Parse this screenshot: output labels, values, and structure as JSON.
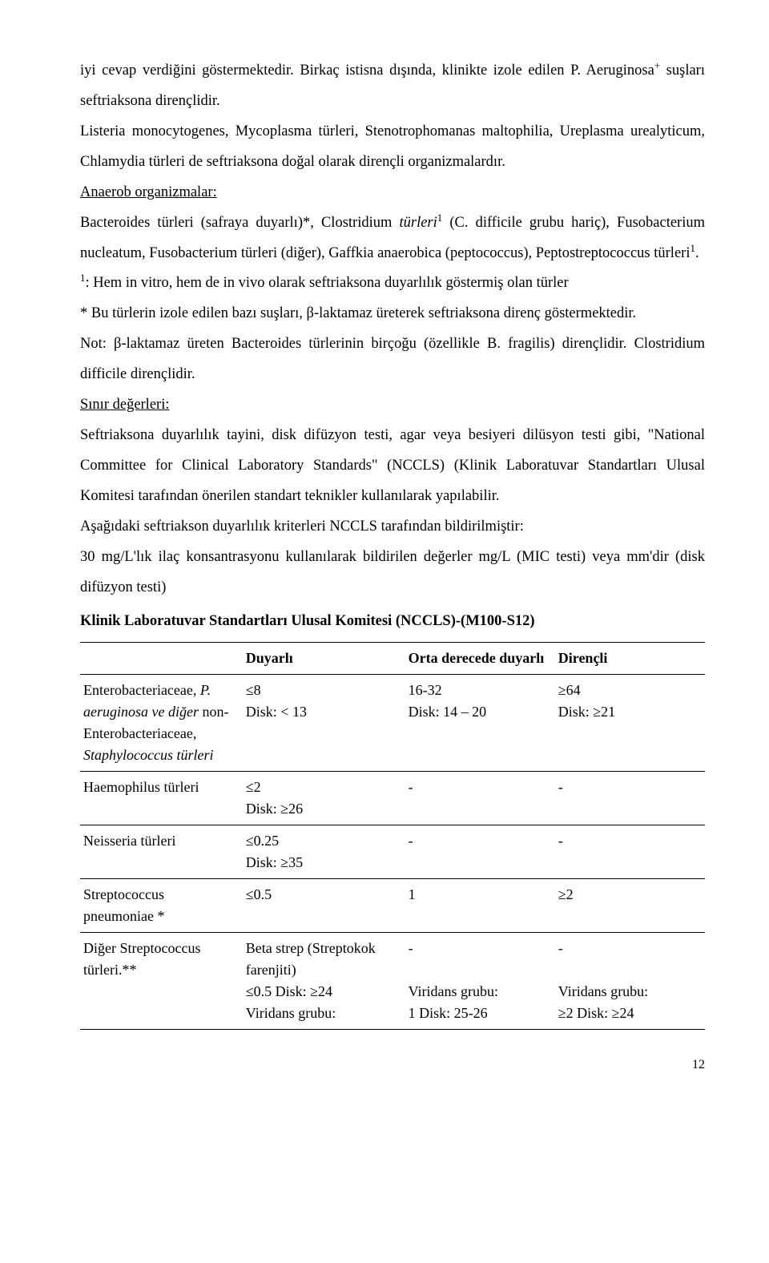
{
  "paragraphs": {
    "p1_a": "iyi cevap verdiğini göstermektedir. Birkaç istisna dışında, klinikte izole edilen P. Aeruginosa",
    "p1_sup": "+",
    "p1_b": " suşları seftriaksona dirençlidir.",
    "p2": "Listeria monocytogenes, Mycoplasma türleri, Stenotrophomanas maltophilia, Ureplasma urealyticum, Chlamydia türleri de seftriaksona doğal olarak dirençli organizmalardır.",
    "p3_u": "Anaerob organizmalar:",
    "p4_a": "Bacteroides türleri (safraya duyarlı)*, Clostridium ",
    "p4_i": "türleri",
    "p4_sup4": "1",
    "p4_b": " (C. difficile grubu hariç), Fusobacterium nucleatum, Fusobacterium türleri (diğer), Gaffkia anaerobica (peptococcus), Peptostreptococcus türleri",
    "p4_sup5": "1",
    "p4_c": ".",
    "p5_sup": "1",
    "p5": ": Hem in vitro, hem de in vivo olarak seftriaksona duyarlılık göstermiş olan türler",
    "p6": "* Bu türlerin izole edilen bazı suşları, β-laktamaz üreterek seftriaksona direnç göstermektedir.",
    "p7": "Not: β-laktamaz üreten Bacteroides türlerinin birçoğu (özellikle B. fragilis) dirençlidir. Clostridium difficile dirençlidir.",
    "p8_u": "Sınır değerleri:",
    "p9": "Seftriaksona duyarlılık tayini, disk difüzyon testi, agar veya besiyeri dilüsyon testi gibi, \"National Committee for Clinical Laboratory Standards\" (NCCLS) (Klinik Laboratuvar Standartları Ulusal Komitesi tarafından önerilen standart teknikler kullanılarak yapılabilir.",
    "p10": "Aşağıdaki seftriakson duyarlılık kriterleri NCCLS tarafından bildirilmiştir:",
    "p11": "30 mg/L'lık ilaç konsantrasyonu kullanılarak bildirilen değerler mg/L (MIC testi) veya mm'dir (disk difüzyon testi)",
    "table_title": "Klinik Laboratuvar Standartları Ulusal Komitesi (NCCLS)-(M100-S12)"
  },
  "table": {
    "headers": [
      "",
      "Duyarlı",
      "Orta derecede duyarlı",
      "Dirençli"
    ],
    "rows": [
      {
        "c0_a": "Enterobacteriaceae, ",
        "c0_i": "P. aeruginosa ve diğer ",
        "c0_b": "non-Enterobacteriaceae, ",
        "c0_i2": "Staphylococcus türleri",
        "c1": "≤8\nDisk: < 13",
        "c2": "16-32\nDisk: 14 – 20",
        "c3": "≥64\nDisk: ≥21"
      },
      {
        "c0": "Haemophilus türleri",
        "c1": "≤2\nDisk: ≥26",
        "c2": "-",
        "c3": "-"
      },
      {
        "c0": "Neisseria türleri",
        "c1": "≤0.25\nDisk: ≥35",
        "c2": "-",
        "c3": "-"
      },
      {
        "c0": "Streptococcus pneumoniae *",
        "c1": "≤0.5",
        "c2": "1",
        "c3": "≥2"
      },
      {
        "c0": "Diğer Streptococcus türleri.**",
        "c1": "Beta strep (Streptokok farenjiti)\n≤0.5 Disk: ≥24\nViridans grubu:",
        "c2": "-\n\nViridans grubu:\n1 Disk: 25-26",
        "c3": "-\n\nViridans grubu:\n≥2 Disk: ≥24"
      }
    ]
  },
  "page_number": "12"
}
